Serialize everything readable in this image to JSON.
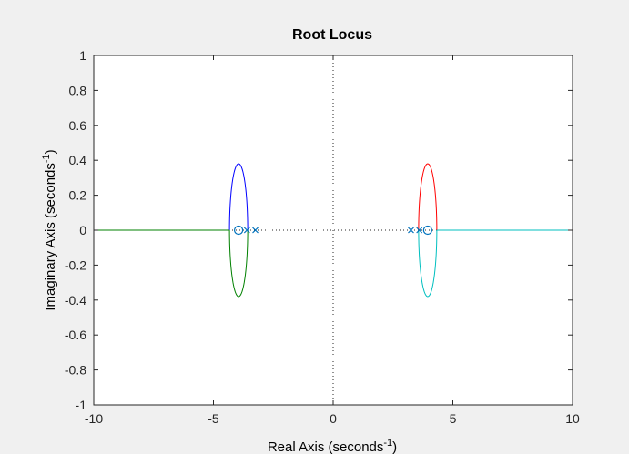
{
  "chart_data": {
    "type": "line",
    "title": "Root Locus",
    "xlabel": "Real Axis (seconds",
    "xlabel_sup": "-1",
    "xlabel_close": ")",
    "ylabel": "Imaginary Axis (seconds",
    "ylabel_sup": "-1",
    "ylabel_close": ")",
    "xlim": [
      -10,
      10
    ],
    "ylim": [
      -1,
      1
    ],
    "xticks": [
      -10,
      -5,
      0,
      5,
      10
    ],
    "xtick_labels": [
      "-10",
      "-5",
      "0",
      "5",
      "10"
    ],
    "yticks": [
      -1,
      -0.8,
      -0.6,
      -0.4,
      -0.2,
      0,
      0.2,
      0.4,
      0.6,
      0.8,
      1
    ],
    "ytick_labels": [
      "-1",
      "-0.8",
      "-0.6",
      "-0.4",
      "-0.2",
      "0",
      "0.2",
      "0.4",
      "0.6",
      "0.8",
      "1"
    ],
    "grid": false,
    "zero_lines": "dotted",
    "series": [
      {
        "color": "#0000ff",
        "kind": "ellipse_arc",
        "center": [
          -3.95,
          0
        ],
        "rx": 0.38,
        "ry": 0.38,
        "half": "upper"
      },
      {
        "color": "#008000",
        "kind": "ellipse_arc",
        "center": [
          -3.95,
          0
        ],
        "rx": 0.38,
        "ry": 0.38,
        "half": "lower"
      },
      {
        "color": "#008000",
        "kind": "line",
        "x": [
          -10,
          -4.33
        ],
        "y": [
          0,
          0
        ]
      },
      {
        "color": "#ff0000",
        "kind": "ellipse_arc",
        "center": [
          3.95,
          0
        ],
        "rx": 0.38,
        "ry": 0.38,
        "half": "upper"
      },
      {
        "color": "#00bfbf",
        "kind": "ellipse_arc",
        "center": [
          3.95,
          0
        ],
        "rx": 0.38,
        "ry": 0.38,
        "half": "lower"
      },
      {
        "color": "#00bfbf",
        "kind": "line",
        "x": [
          4.33,
          10
        ],
        "y": [
          0,
          0
        ]
      }
    ],
    "zeros": [
      {
        "x": -3.95,
        "y": 0
      },
      {
        "x": 3.95,
        "y": 0
      }
    ],
    "poles": [
      {
        "x": -3.6,
        "y": 0
      },
      {
        "x": -3.25,
        "y": 0
      },
      {
        "x": 3.25,
        "y": 0
      },
      {
        "x": 3.6,
        "y": 0
      }
    ],
    "marker_color": "#0072bd"
  }
}
